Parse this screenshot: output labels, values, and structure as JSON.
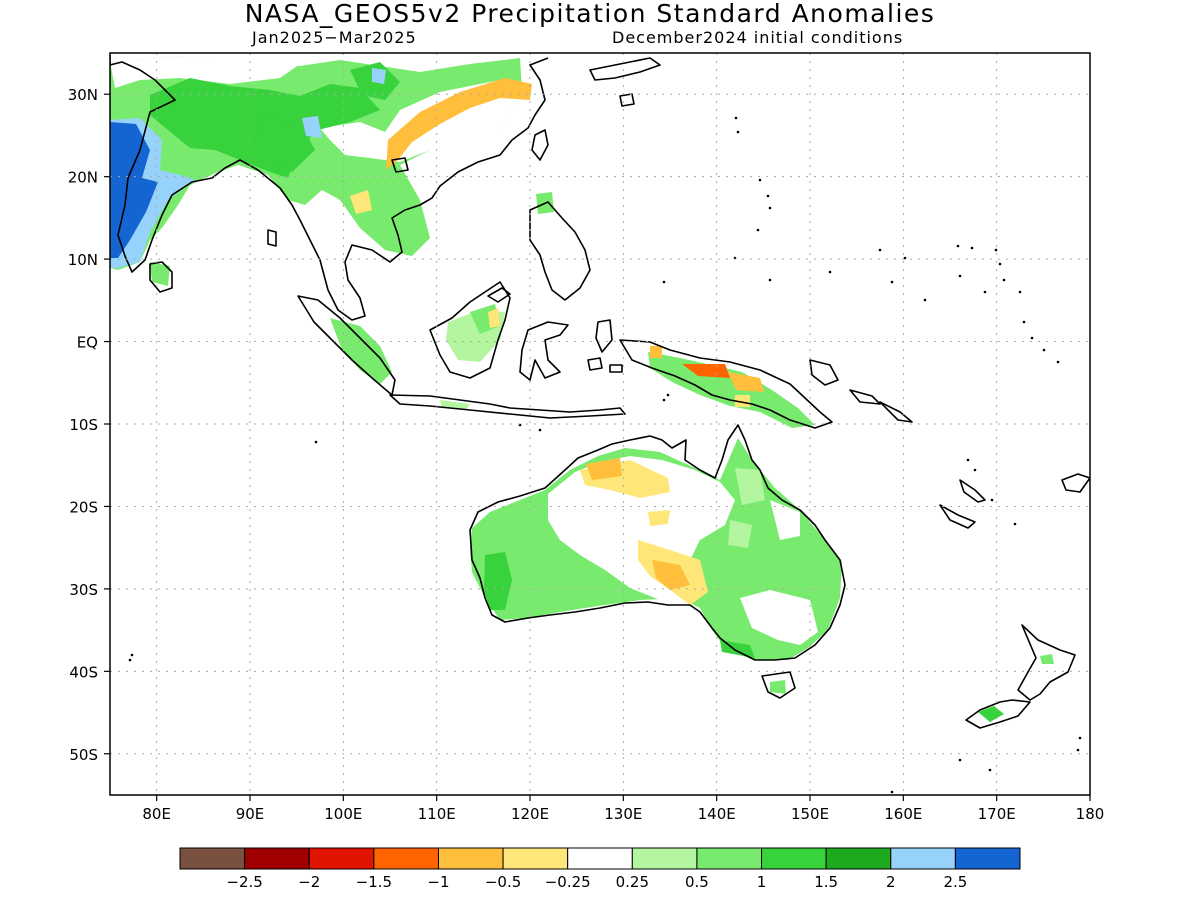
{
  "title": "NASA_GEOS5v2 Precipitation Standard Anomalies",
  "subtitle_left": "Jan2025−Mar2025",
  "subtitle_right": "December2024 initial conditions",
  "map": {
    "lon_range": [
      75,
      180
    ],
    "lat_range": [
      -55,
      35
    ],
    "lat_labels": [
      {
        "lat": 30,
        "label": "30N"
      },
      {
        "lat": 20,
        "label": "20N"
      },
      {
        "lat": 10,
        "label": "10N"
      },
      {
        "lat": 0,
        "label": "EQ"
      },
      {
        "lat": -10,
        "label": "10S"
      },
      {
        "lat": -20,
        "label": "20S"
      },
      {
        "lat": -30,
        "label": "30S"
      },
      {
        "lat": -40,
        "label": "40S"
      },
      {
        "lat": -50,
        "label": "50S"
      }
    ],
    "lon_labels": [
      {
        "lon": 80,
        "label": "80E"
      },
      {
        "lon": 90,
        "label": "90E"
      },
      {
        "lon": 100,
        "label": "100E"
      },
      {
        "lon": 110,
        "label": "110E"
      },
      {
        "lon": 120,
        "label": "120E"
      },
      {
        "lon": 130,
        "label": "130E"
      },
      {
        "lon": 140,
        "label": "140E"
      },
      {
        "lon": 150,
        "label": "150E"
      },
      {
        "lon": 160,
        "label": "160E"
      },
      {
        "lon": 170,
        "label": "170E"
      },
      {
        "lon": 180,
        "label": "180"
      }
    ],
    "grid_lats": [
      30,
      20,
      10,
      0,
      -10,
      -20,
      -30,
      -40,
      -50
    ],
    "grid_lons": [
      80,
      90,
      100,
      110,
      120,
      130,
      140,
      150,
      160,
      170
    ]
  },
  "legend": {
    "colors": [
      "#7a5040",
      "#a00000",
      "#e01400",
      "#ff6400",
      "#ffbe3c",
      "#ffe678",
      "#ffffff",
      "#b4f5a0",
      "#78eb6e",
      "#37d23c",
      "#1eaa1e",
      "#96d2fa",
      "#1464d2"
    ],
    "labels": [
      "−2.5",
      "−2",
      "−1.5",
      "−1",
      "−0.5",
      "−0.25",
      "0.25",
      "0.5",
      "1",
      "1.5",
      "2",
      "2.5"
    ]
  },
  "colors": {
    "land_outline": "#000000",
    "grid": "#aaaaaa"
  }
}
